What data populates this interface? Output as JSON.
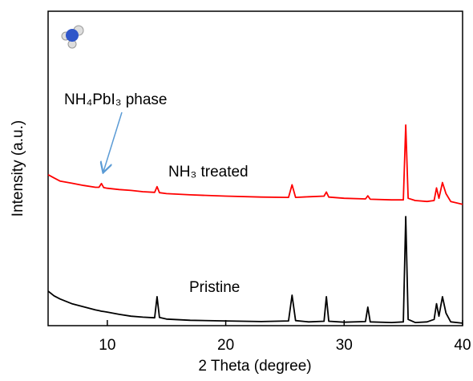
{
  "chart_data": {
    "type": "line",
    "xlabel": "2 Theta (degree)",
    "ylabel": "Intensity (a.u.)",
    "annotation": "NH₄PbI₃ phase",
    "xlim": [
      5,
      40
    ],
    "xticks": [
      10,
      20,
      30,
      40
    ],
    "ylim": [
      0,
      100
    ],
    "x": [
      5,
      5.5,
      6,
      7,
      8,
      9,
      9.3,
      9.5,
      9.7,
      10,
      11,
      12,
      13,
      14,
      14.2,
      14.4,
      15,
      17,
      20,
      23,
      25.3,
      25.6,
      25.9,
      27,
      28.3,
      28.5,
      28.7,
      30,
      31.8,
      32,
      32.2,
      34,
      35,
      35.2,
      35.4,
      36,
      37,
      37.6,
      37.8,
      38,
      38.3,
      38.6,
      39,
      40
    ],
    "series": [
      {
        "name": "NH₃ treated",
        "color": "#ff0000",
        "values": [
          48,
          47,
          46,
          45.3,
          44.6,
          44,
          44,
          45.2,
          43.9,
          43.7,
          43.3,
          43,
          42.6,
          42.4,
          44.2,
          42.3,
          42,
          41.6,
          41.2,
          40.9,
          40.8,
          44.8,
          40.8,
          41,
          41.2,
          42.5,
          40.9,
          40.5,
          40.3,
          41.3,
          40.2,
          40,
          40,
          63.8,
          40.5,
          39.8,
          39.5,
          39.8,
          43.8,
          40.5,
          45.5,
          42,
          39.5,
          38.6
        ]
      },
      {
        "name": "Pristine",
        "color": "#000000",
        "values": [
          11,
          9.5,
          8.5,
          7,
          6,
          5,
          4.8,
          4.6,
          4.5,
          4.3,
          3.6,
          3,
          2.7,
          2.5,
          9.2,
          2.6,
          2.1,
          1.7,
          1.5,
          1.3,
          1.5,
          9.7,
          1.6,
          1.2,
          1.4,
          9.2,
          1.4,
          1.1,
          1.3,
          5.9,
          1.2,
          1,
          1.2,
          34.7,
          2,
          1,
          1.2,
          2,
          7,
          3,
          9.2,
          4,
          1.2,
          0.8
        ]
      }
    ]
  }
}
